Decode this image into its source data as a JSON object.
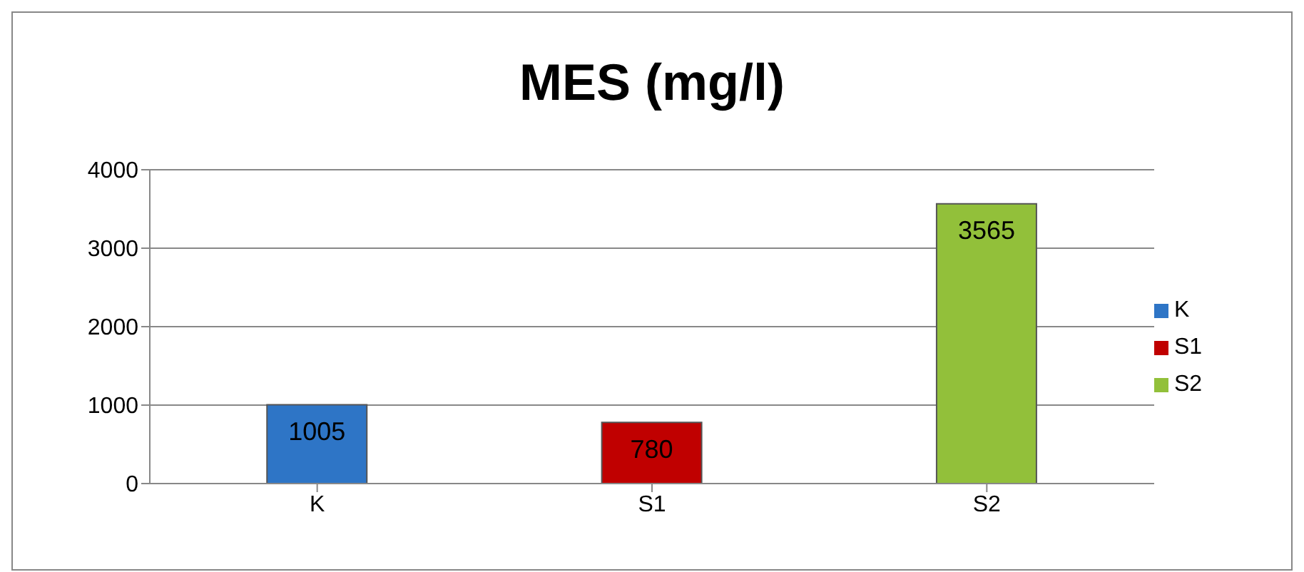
{
  "chart_data": {
    "type": "bar",
    "title": "MES (mg/l)",
    "categories": [
      "K",
      "S1",
      "S2"
    ],
    "series": [
      {
        "name": "K",
        "color": "#2e75c6",
        "values": [
          1005,
          null,
          null
        ]
      },
      {
        "name": "S1",
        "color": "#c00000",
        "values": [
          null,
          780,
          null
        ]
      },
      {
        "name": "S2",
        "color": "#92c03a",
        "values": [
          null,
          null,
          3565
        ]
      }
    ],
    "stacked": true,
    "ylim": [
      0,
      4000
    ],
    "yticks": [
      0,
      1000,
      2000,
      3000,
      4000
    ],
    "grid": "y",
    "legend": "right",
    "data_labels": true
  }
}
